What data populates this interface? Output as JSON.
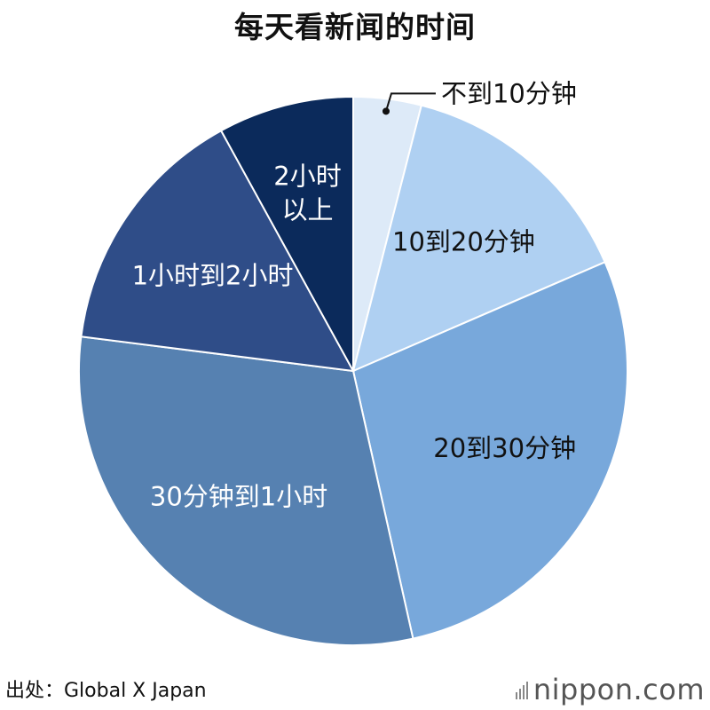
{
  "title": "每天看新闻的时间",
  "chart_data": {
    "type": "pie",
    "title": "每天看新闻的时间",
    "start": "12 o'clock, clockwise",
    "slices": [
      {
        "label": "不到10分钟",
        "lines": [
          "不到10分钟"
        ],
        "value": 4,
        "color": "#ddeaf8",
        "text_color": "#111111",
        "placement": "outside-callout"
      },
      {
        "label": "10到20分钟",
        "lines": [
          "10到20分钟"
        ],
        "value": 14.5,
        "color": "#afd0f2",
        "text_color": "#111111",
        "placement": "inside"
      },
      {
        "label": "20到30分钟",
        "lines": [
          "20到30分钟"
        ],
        "value": 28,
        "color": "#78a8db",
        "text_color": "#111111",
        "placement": "inside"
      },
      {
        "label": "30分钟到1小时",
        "lines": [
          "30分钟到1小时"
        ],
        "value": 30.5,
        "color": "#5681b1",
        "text_color": "#ffffff",
        "placement": "inside"
      },
      {
        "label": "1小时到2小时",
        "lines": [
          "1小时到2小时"
        ],
        "value": 15,
        "color": "#2f4d88",
        "text_color": "#ffffff",
        "placement": "inside"
      },
      {
        "label": "2小时以上",
        "lines": [
          "2小时",
          "以上"
        ],
        "value": 8,
        "color": "#0b2a5b",
        "text_color": "#ffffff",
        "placement": "inside"
      }
    ]
  },
  "footer": {
    "source": "出处：Global X Japan",
    "logo_main": "nippon",
    "logo_dot": ".",
    "logo_tld": "com"
  }
}
